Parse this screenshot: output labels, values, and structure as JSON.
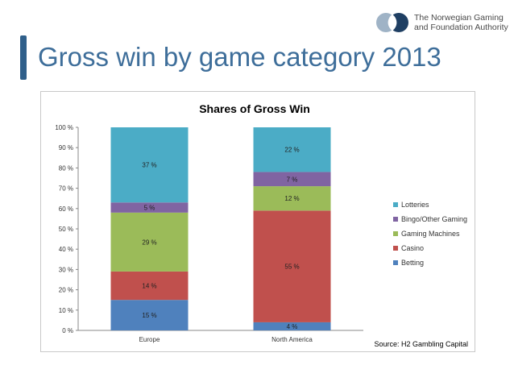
{
  "slide": {
    "title": "Gross win by game category 2013",
    "logo_line1": "The Norwegian Gaming",
    "logo_line2": "and Foundation Authority"
  },
  "chart_data": {
    "type": "bar",
    "stacked": true,
    "title": "Shares of Gross Win",
    "categories": [
      "Europe",
      "North America"
    ],
    "series": [
      {
        "name": "Betting",
        "values": [
          15,
          4
        ],
        "labels": [
          "15 %",
          "4 %"
        ],
        "color": "#4f81bd"
      },
      {
        "name": "Casino",
        "values": [
          14,
          55
        ],
        "labels": [
          "14 %",
          "55 %"
        ],
        "color": "#c0504d"
      },
      {
        "name": "Gaming Machines",
        "values": [
          29,
          12
        ],
        "labels": [
          "29 %",
          "12 %"
        ],
        "color": "#9bbb59"
      },
      {
        "name": "Bingo/Other Gaming",
        "values": [
          5,
          7
        ],
        "labels": [
          "5 %",
          "7 %"
        ],
        "color": "#8064a2"
      },
      {
        "name": "Lotteries",
        "values": [
          37,
          22
        ],
        "labels": [
          "37 %",
          "22 %"
        ],
        "color": "#4bacc6"
      }
    ],
    "yticks": [
      "0 %",
      "10 %",
      "20 %",
      "30 %",
      "40 %",
      "50 %",
      "60 %",
      "70 %",
      "80 %",
      "90 %",
      "100 %"
    ],
    "ylim": [
      0,
      100
    ],
    "legend": "right",
    "source": "Source: H2 Gambling Capital"
  }
}
